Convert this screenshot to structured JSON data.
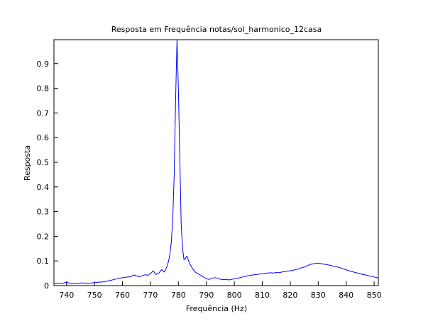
{
  "chart_data": {
    "type": "line",
    "title": "Resposta em Frequência notas/sol_harmonico_12casa",
    "xlabel": "Frequência (Hz)",
    "ylabel": "Resposta",
    "xlim": [
      735.5,
      851.5
    ],
    "ylim": [
      0,
      0.997
    ],
    "grid": false,
    "x_ticks": [
      740,
      750,
      760,
      770,
      780,
      790,
      800,
      810,
      820,
      830,
      840,
      850
    ],
    "y_ticks": [
      0,
      0.1,
      0.2,
      0.3,
      0.4,
      0.5,
      0.6,
      0.7,
      0.8,
      0.9
    ],
    "x_tick_labels": [
      "740",
      "750",
      "760",
      "770",
      "780",
      "790",
      "800",
      "810",
      "820",
      "830",
      "840",
      "850"
    ],
    "y_tick_labels": [
      "0",
      "0.1",
      "0.2",
      "0.3",
      "0.4",
      "0.5",
      "0.6",
      "0.7",
      "0.8",
      "0.9"
    ],
    "series": [
      {
        "color": "#0000ff",
        "x": [
          735.5,
          737,
          738.5,
          740,
          741,
          742.5,
          744,
          745.5,
          747,
          748.5,
          750,
          751.5,
          753,
          754.5,
          756,
          757.5,
          759,
          760.5,
          762,
          763,
          764,
          765,
          766,
          767,
          768,
          769,
          770,
          771,
          772,
          773,
          774,
          775,
          776,
          776.5,
          777,
          777.5,
          778,
          778.5,
          779,
          779.5,
          780,
          780.5,
          781,
          781.5,
          782,
          782.5,
          783,
          783.5,
          784,
          785,
          786,
          787,
          788,
          789,
          790,
          791,
          792,
          793,
          794,
          795,
          796,
          797,
          798,
          799,
          800,
          801,
          802,
          803,
          804,
          805,
          806,
          807,
          808,
          809,
          810,
          811,
          812,
          813,
          814,
          815,
          816,
          817,
          818,
          819,
          820,
          821,
          822,
          823,
          824,
          825,
          826,
          827,
          828,
          829,
          830,
          831,
          832,
          833,
          834,
          835,
          836,
          837,
          838,
          839,
          840,
          841,
          842,
          843,
          844,
          845,
          846,
          847,
          848,
          849,
          850,
          851,
          851.5
        ],
        "y": [
          0.01,
          0.008,
          0.009,
          0.014,
          0.01,
          0.008,
          0.009,
          0.011,
          0.009,
          0.01,
          0.012,
          0.014,
          0.015,
          0.018,
          0.022,
          0.026,
          0.03,
          0.033,
          0.035,
          0.036,
          0.043,
          0.04,
          0.036,
          0.04,
          0.044,
          0.042,
          0.048,
          0.06,
          0.045,
          0.05,
          0.065,
          0.055,
          0.08,
          0.1,
          0.13,
          0.18,
          0.28,
          0.45,
          0.75,
          0.997,
          0.8,
          0.52,
          0.25,
          0.15,
          0.105,
          0.11,
          0.12,
          0.105,
          0.09,
          0.07,
          0.055,
          0.048,
          0.042,
          0.035,
          0.028,
          0.025,
          0.03,
          0.032,
          0.03,
          0.026,
          0.024,
          0.025,
          0.023,
          0.025,
          0.028,
          0.03,
          0.032,
          0.035,
          0.038,
          0.04,
          0.042,
          0.044,
          0.045,
          0.047,
          0.048,
          0.05,
          0.051,
          0.052,
          0.051,
          0.053,
          0.052,
          0.055,
          0.057,
          0.059,
          0.06,
          0.062,
          0.065,
          0.068,
          0.072,
          0.075,
          0.08,
          0.085,
          0.088,
          0.09,
          0.09,
          0.089,
          0.087,
          0.085,
          0.083,
          0.08,
          0.078,
          0.075,
          0.072,
          0.068,
          0.064,
          0.06,
          0.057,
          0.054,
          0.051,
          0.048,
          0.045,
          0.043,
          0.04,
          0.038,
          0.035,
          0.032,
          0.03
        ]
      }
    ]
  }
}
